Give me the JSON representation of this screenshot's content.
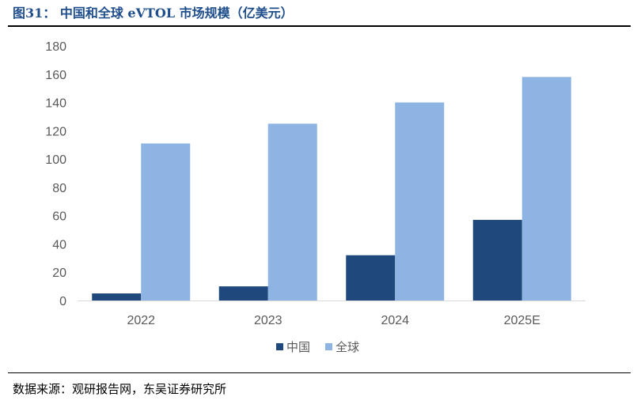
{
  "header": {
    "title": "图31： 中国和全球 eVTOL 市场规模（亿美元）"
  },
  "footer": {
    "source": "数据来源：观研报告网，东吴证券研究所"
  },
  "chart_data": {
    "type": "bar",
    "categories": [
      "2022",
      "2023",
      "2024",
      "2025E"
    ],
    "series": [
      {
        "name": "中国",
        "values": [
          5,
          10,
          32,
          57
        ],
        "color": "#1f497d"
      },
      {
        "name": "全球",
        "values": [
          111,
          125,
          140,
          158
        ],
        "color": "#8db4e2"
      }
    ],
    "ylim": [
      0,
      180
    ],
    "yticks": [
      0,
      20,
      40,
      60,
      80,
      100,
      120,
      140,
      160,
      180
    ],
    "grid": false,
    "legend_position": "bottom-center"
  }
}
